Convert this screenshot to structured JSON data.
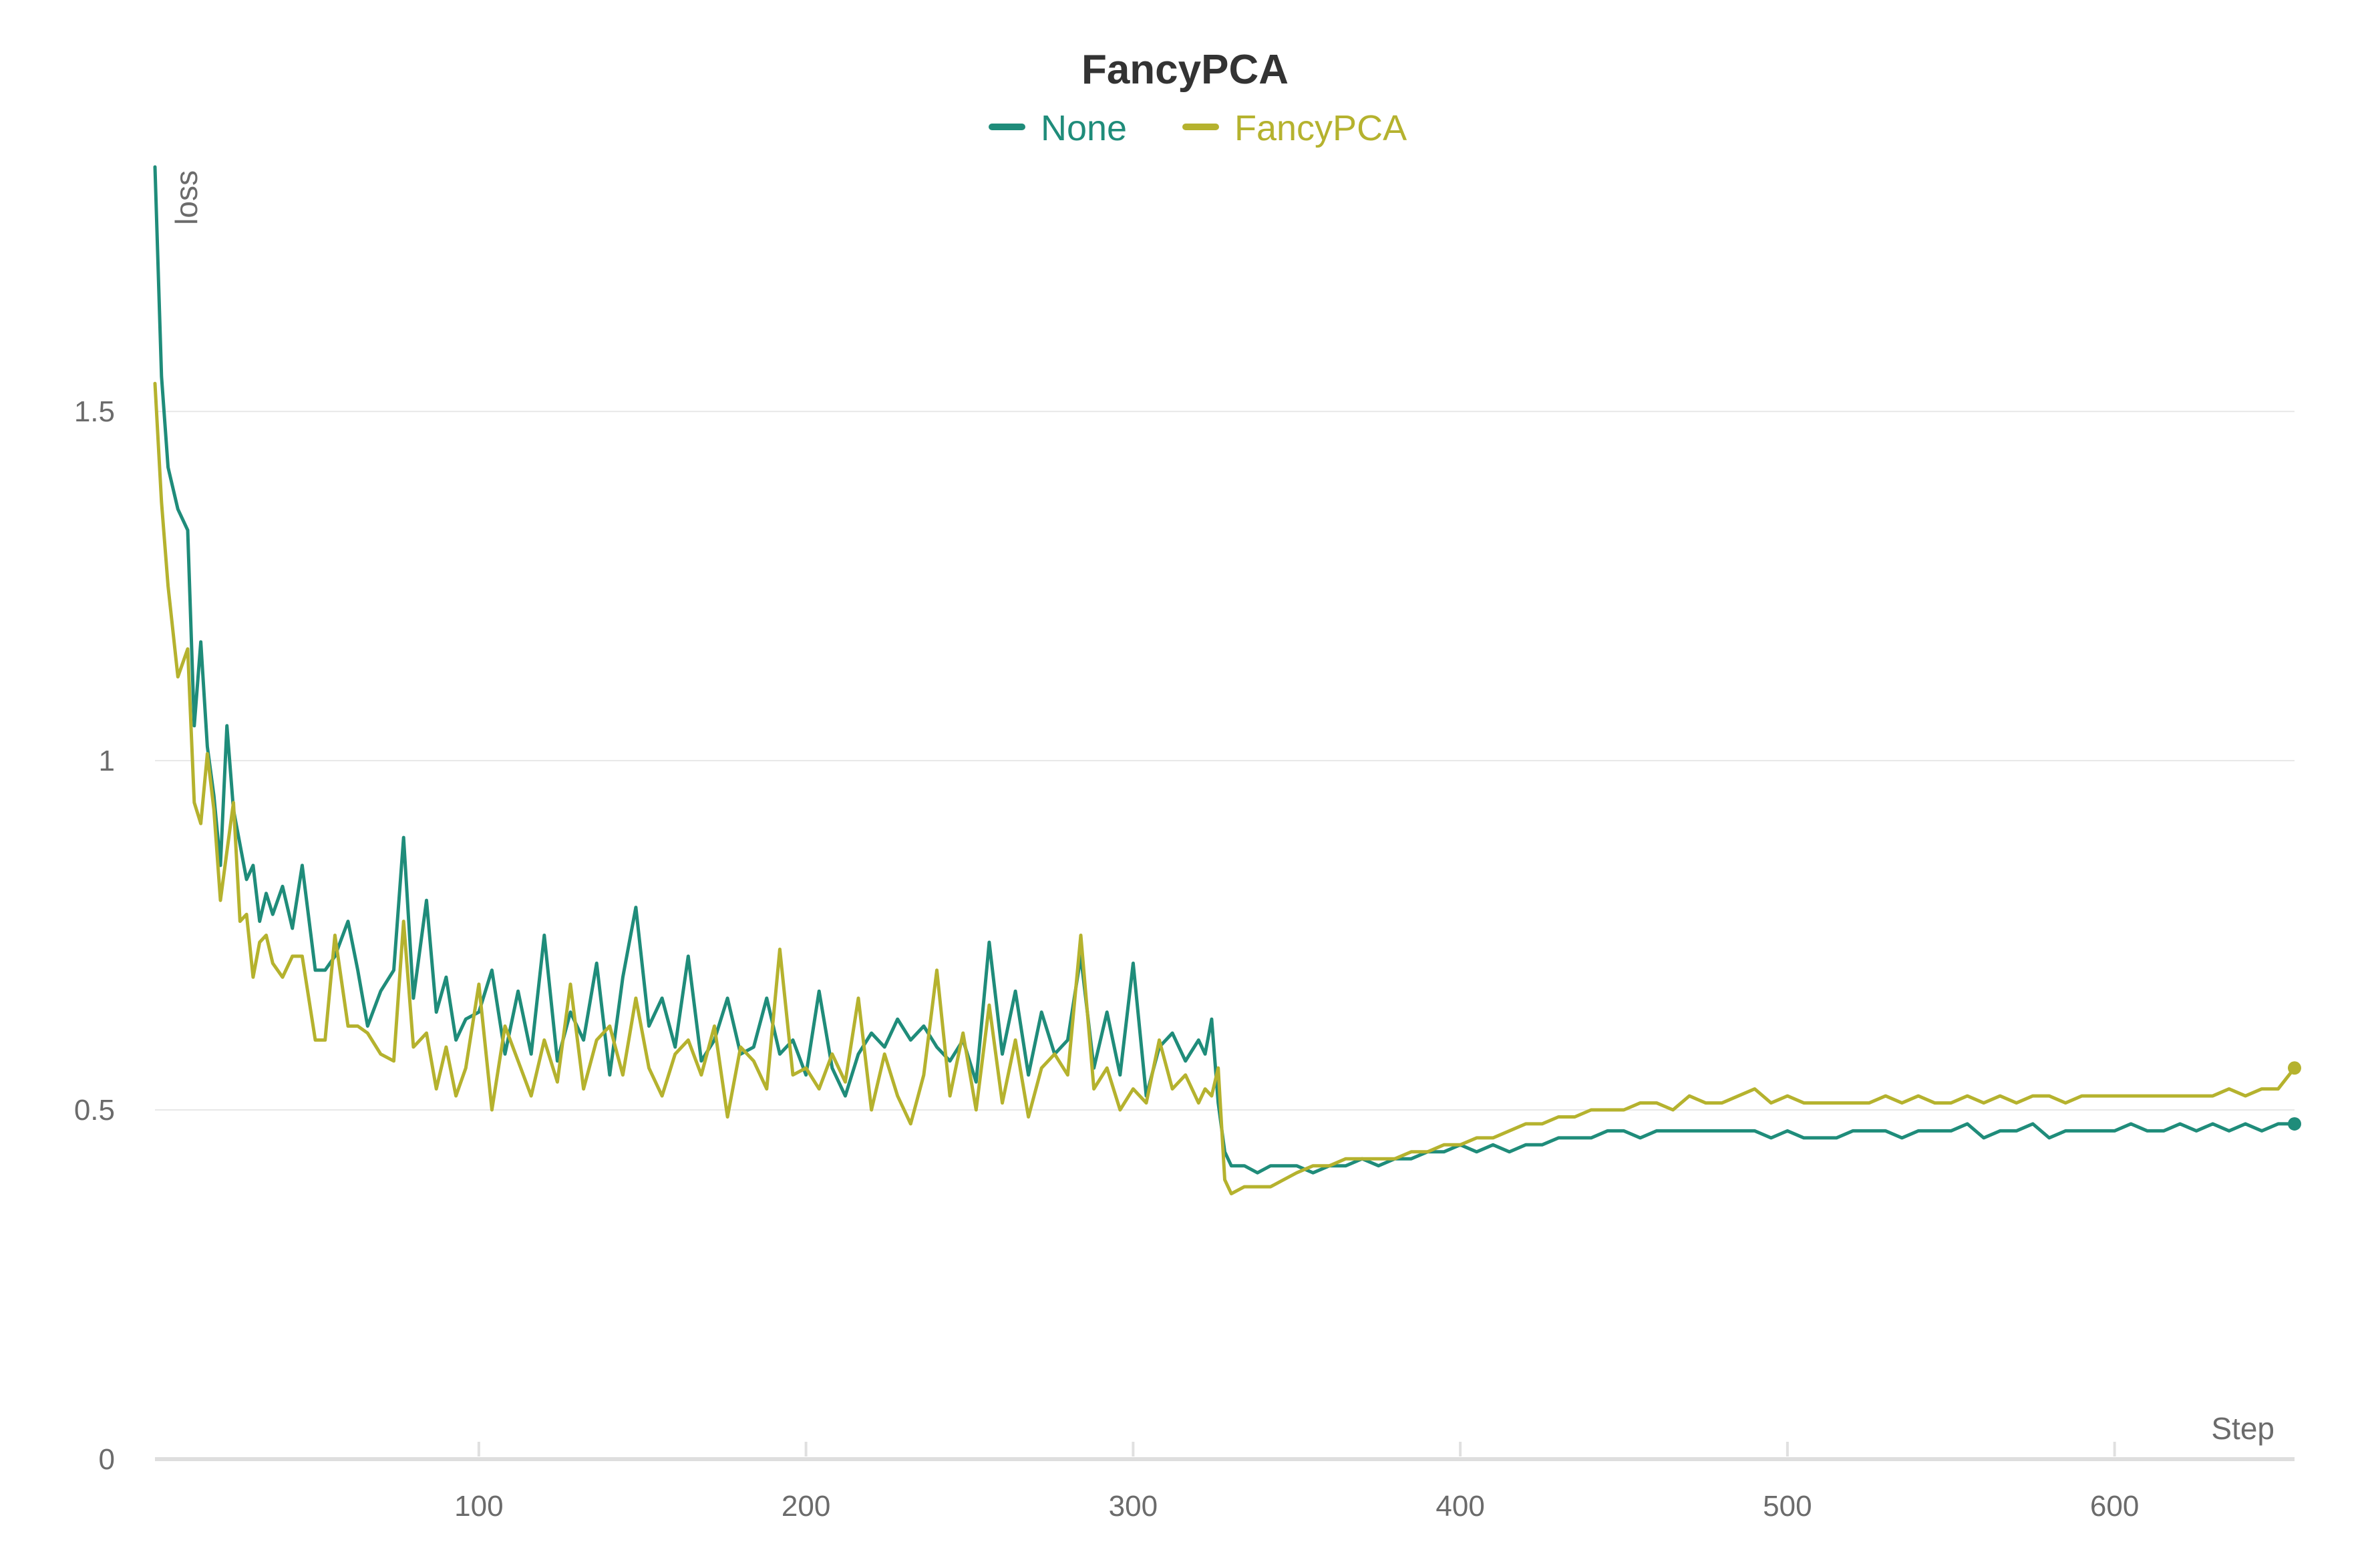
{
  "chart_data": {
    "type": "line",
    "title": "FancyPCA",
    "xlabel": "Step",
    "ylabel": "loss",
    "xlim": [
      1,
      655
    ],
    "ylim": [
      0,
      1.85
    ],
    "x_ticks": [
      100,
      200,
      300,
      400,
      500,
      600
    ],
    "x_tick_labels": [
      "100",
      "200",
      "300",
      "400",
      "500",
      "600"
    ],
    "y_ticks": [
      0,
      0.5,
      1,
      1.5
    ],
    "y_tick_labels": [
      "0",
      "0.5",
      "1",
      "1.5"
    ],
    "grid": true,
    "legend_position": "top-center",
    "series": [
      {
        "name": "None",
        "color": "#1f8c7a",
        "x": [
          1,
          3,
          5,
          8,
          11,
          13,
          15,
          17,
          19,
          21,
          23,
          25,
          27,
          29,
          31,
          33,
          35,
          37,
          40,
          43,
          46,
          50,
          53,
          56,
          60,
          63,
          66,
          70,
          74,
          77,
          80,
          84,
          87,
          90,
          93,
          96,
          100,
          104,
          108,
          112,
          116,
          120,
          124,
          128,
          132,
          136,
          140,
          144,
          148,
          152,
          156,
          160,
          164,
          168,
          172,
          176,
          180,
          184,
          188,
          192,
          196,
          200,
          204,
          208,
          212,
          216,
          220,
          224,
          228,
          232,
          236,
          240,
          244,
          248,
          252,
          256,
          260,
          264,
          268,
          272,
          276,
          280,
          284,
          288,
          292,
          296,
          300,
          304,
          308,
          312,
          316,
          320,
          322,
          324,
          326,
          328,
          330,
          334,
          338,
          342,
          346,
          350,
          355,
          360,
          365,
          370,
          375,
          380,
          385,
          390,
          395,
          400,
          405,
          410,
          415,
          420,
          425,
          430,
          435,
          440,
          445,
          450,
          455,
          460,
          465,
          470,
          475,
          480,
          485,
          490,
          495,
          500,
          505,
          510,
          515,
          520,
          525,
          530,
          535,
          540,
          545,
          550,
          555,
          560,
          565,
          570,
          575,
          580,
          585,
          590,
          595,
          600,
          605,
          610,
          615,
          620,
          625,
          630,
          635,
          640,
          645,
          650,
          655
        ],
        "values": [
          1.85,
          1.55,
          1.42,
          1.36,
          1.33,
          1.05,
          1.17,
          1.02,
          0.95,
          0.85,
          1.05,
          0.93,
          0.88,
          0.83,
          0.85,
          0.77,
          0.81,
          0.78,
          0.82,
          0.76,
          0.85,
          0.7,
          0.7,
          0.72,
          0.77,
          0.7,
          0.62,
          0.67,
          0.7,
          0.89,
          0.66,
          0.8,
          0.64,
          0.69,
          0.6,
          0.63,
          0.64,
          0.7,
          0.58,
          0.67,
          0.58,
          0.75,
          0.57,
          0.64,
          0.6,
          0.71,
          0.55,
          0.69,
          0.79,
          0.62,
          0.66,
          0.59,
          0.72,
          0.57,
          0.6,
          0.66,
          0.58,
          0.59,
          0.66,
          0.58,
          0.6,
          0.55,
          0.67,
          0.56,
          0.52,
          0.58,
          0.61,
          0.59,
          0.63,
          0.6,
          0.62,
          0.59,
          0.57,
          0.6,
          0.54,
          0.74,
          0.58,
          0.67,
          0.55,
          0.64,
          0.58,
          0.6,
          0.72,
          0.56,
          0.64,
          0.55,
          0.71,
          0.52,
          0.59,
          0.61,
          0.57,
          0.6,
          0.58,
          0.63,
          0.51,
          0.44,
          0.42,
          0.42,
          0.41,
          0.42,
          0.42,
          0.42,
          0.41,
          0.42,
          0.42,
          0.43,
          0.42,
          0.43,
          0.43,
          0.44,
          0.44,
          0.45,
          0.44,
          0.45,
          0.44,
          0.45,
          0.45,
          0.46,
          0.46,
          0.46,
          0.47,
          0.47,
          0.46,
          0.47,
          0.47,
          0.47,
          0.47,
          0.47,
          0.47,
          0.47,
          0.46,
          0.47,
          0.46,
          0.46,
          0.46,
          0.47,
          0.47,
          0.47,
          0.46,
          0.47,
          0.47,
          0.47,
          0.48,
          0.46,
          0.47,
          0.47,
          0.48,
          0.46,
          0.47,
          0.47,
          0.47,
          0.47,
          0.48,
          0.47,
          0.47,
          0.48,
          0.47,
          0.48,
          0.47,
          0.48,
          0.47,
          0.48,
          0.48
        ]
      },
      {
        "name": "FancyPCA",
        "color": "#b5b22e",
        "x": [
          1,
          3,
          5,
          8,
          11,
          13,
          15,
          17,
          19,
          21,
          23,
          25,
          27,
          29,
          31,
          33,
          35,
          37,
          40,
          43,
          46,
          50,
          53,
          56,
          60,
          63,
          66,
          70,
          74,
          77,
          80,
          84,
          87,
          90,
          93,
          96,
          100,
          104,
          108,
          112,
          116,
          120,
          124,
          128,
          132,
          136,
          140,
          144,
          148,
          152,
          156,
          160,
          164,
          168,
          172,
          176,
          180,
          184,
          188,
          192,
          196,
          200,
          204,
          208,
          212,
          216,
          220,
          224,
          228,
          232,
          236,
          240,
          244,
          248,
          252,
          256,
          260,
          264,
          268,
          272,
          276,
          280,
          284,
          288,
          292,
          296,
          300,
          304,
          308,
          312,
          316,
          320,
          322,
          324,
          326,
          328,
          330,
          334,
          338,
          342,
          346,
          350,
          355,
          360,
          365,
          370,
          375,
          380,
          385,
          390,
          395,
          400,
          405,
          410,
          415,
          420,
          425,
          430,
          435,
          440,
          445,
          450,
          455,
          460,
          465,
          470,
          475,
          480,
          485,
          490,
          495,
          500,
          505,
          510,
          515,
          520,
          525,
          530,
          535,
          540,
          545,
          550,
          555,
          560,
          565,
          570,
          575,
          580,
          585,
          590,
          595,
          600,
          605,
          610,
          615,
          620,
          625,
          630,
          635,
          640,
          645,
          650,
          655
        ],
        "values": [
          1.54,
          1.37,
          1.25,
          1.12,
          1.16,
          0.94,
          0.91,
          1.01,
          0.93,
          0.8,
          0.87,
          0.94,
          0.77,
          0.78,
          0.69,
          0.74,
          0.75,
          0.71,
          0.69,
          0.72,
          0.72,
          0.6,
          0.6,
          0.75,
          0.62,
          0.62,
          0.61,
          0.58,
          0.57,
          0.77,
          0.59,
          0.61,
          0.53,
          0.59,
          0.52,
          0.56,
          0.68,
          0.5,
          0.62,
          0.57,
          0.52,
          0.6,
          0.54,
          0.68,
          0.53,
          0.6,
          0.62,
          0.55,
          0.66,
          0.56,
          0.52,
          0.58,
          0.6,
          0.55,
          0.62,
          0.49,
          0.59,
          0.57,
          0.53,
          0.73,
          0.55,
          0.56,
          0.53,
          0.58,
          0.54,
          0.66,
          0.5,
          0.58,
          0.52,
          0.48,
          0.55,
          0.7,
          0.52,
          0.61,
          0.5,
          0.65,
          0.51,
          0.6,
          0.49,
          0.56,
          0.58,
          0.55,
          0.75,
          0.53,
          0.56,
          0.5,
          0.53,
          0.51,
          0.6,
          0.53,
          0.55,
          0.51,
          0.53,
          0.52,
          0.56,
          0.4,
          0.38,
          0.39,
          0.39,
          0.39,
          0.4,
          0.41,
          0.42,
          0.42,
          0.43,
          0.43,
          0.43,
          0.43,
          0.44,
          0.44,
          0.45,
          0.45,
          0.46,
          0.46,
          0.47,
          0.48,
          0.48,
          0.49,
          0.49,
          0.5,
          0.5,
          0.5,
          0.51,
          0.51,
          0.5,
          0.52,
          0.51,
          0.51,
          0.52,
          0.53,
          0.51,
          0.52,
          0.51,
          0.51,
          0.51,
          0.51,
          0.51,
          0.52,
          0.51,
          0.52,
          0.51,
          0.51,
          0.52,
          0.51,
          0.52,
          0.51,
          0.52,
          0.52,
          0.51,
          0.52,
          0.52,
          0.52,
          0.52,
          0.52,
          0.52,
          0.52,
          0.52,
          0.52,
          0.53,
          0.52,
          0.53,
          0.53,
          0.56
        ]
      }
    ]
  }
}
